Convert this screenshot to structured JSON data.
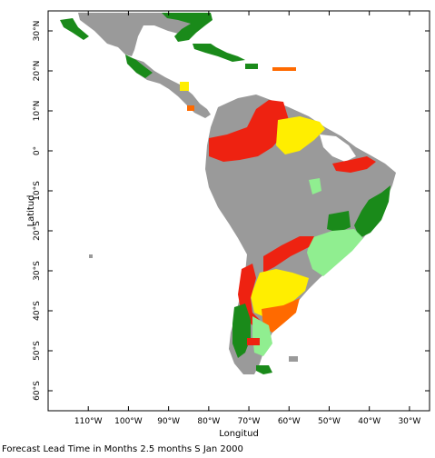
{
  "map": {
    "x_axis_title": "Longitud",
    "y_axis_title": "Latitud",
    "lon_range": [
      -120,
      -25
    ],
    "lat_range": [
      -65,
      35
    ],
    "lon_ticks": [
      "110°W",
      "100°W",
      "90°W",
      "80°W",
      "70°W",
      "60°W",
      "50°W",
      "40°W",
      "30°W"
    ],
    "lat_ticks": [
      "30°N",
      "20°N",
      "10°N",
      "0°",
      "10°S",
      "20°S",
      "30°S",
      "40°S",
      "50°S",
      "60°S"
    ],
    "colors": {
      "no_skill_land": "#9a9a9a",
      "green": "#1a8a1a",
      "light_green": "#90ee90",
      "red": "#ee2211",
      "orange": "#ff6a00",
      "yellow": "#ffee00",
      "frame": "#000000"
    },
    "caption": "Forecast Lead Time in Months 2.5 months S Jan 2000"
  }
}
